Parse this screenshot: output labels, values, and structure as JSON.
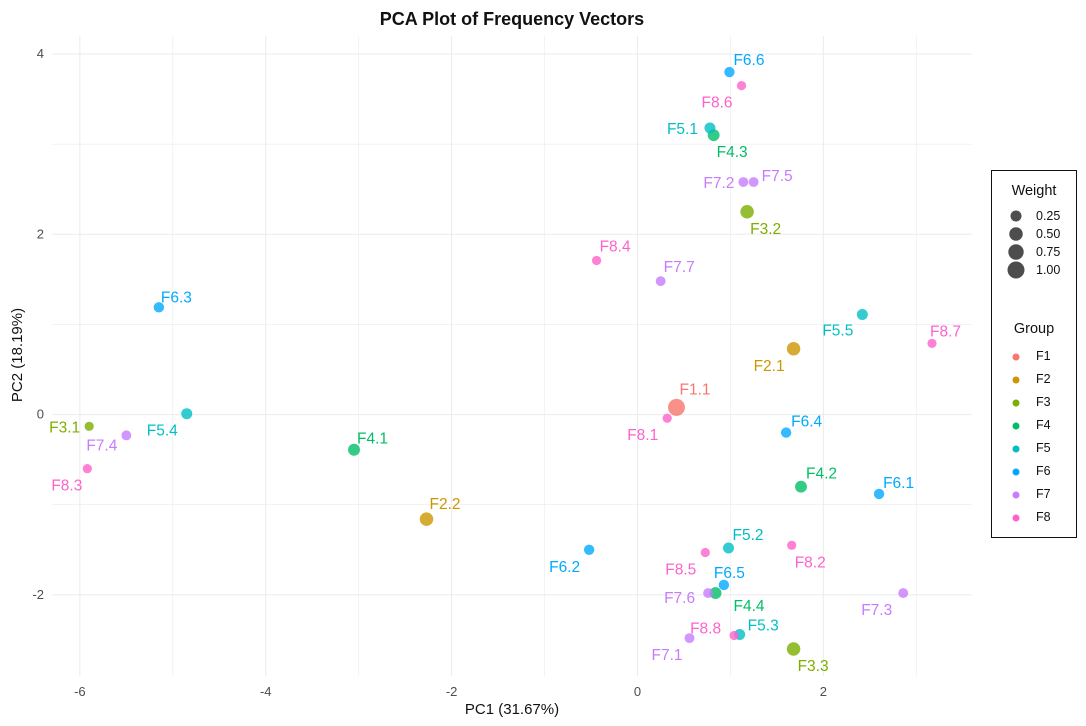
{
  "chart_data": {
    "type": "scatter",
    "title": "PCA Plot of Frequency Vectors",
    "xlabel": "PC1 (31.67%)",
    "ylabel": "PC2 (18.19%)",
    "xlim": [
      -6.3,
      3.6
    ],
    "ylim": [
      -2.9,
      4.2
    ],
    "xticks": [
      -6,
      -4,
      -2,
      0,
      2
    ],
    "yticks": [
      -2,
      0,
      2,
      4
    ],
    "grid": true,
    "legend_position": "right",
    "size_legend": {
      "title": "Weight",
      "entries": [
        "0.25",
        "0.50",
        "0.75",
        "1.00"
      ],
      "values": [
        0.25,
        0.5,
        0.75,
        1.0
      ]
    },
    "color_legend": {
      "title": "Group",
      "entries": [
        "F1",
        "F2",
        "F3",
        "F4",
        "F5",
        "F6",
        "F7",
        "F8"
      ]
    },
    "group_colors": {
      "F1": "#F8766D",
      "F2": "#CD9600",
      "F3": "#7CAE00",
      "F4": "#00BE67",
      "F5": "#00BFC4",
      "F6": "#00A9FF",
      "F7": "#C77CFF",
      "F8": "#FF61CC"
    },
    "points": [
      {
        "label": "F1.1",
        "group": "F1",
        "x": 0.42,
        "y": 0.08,
        "weight": 1.0
      },
      {
        "label": "F2.1",
        "group": "F2",
        "x": 1.68,
        "y": 0.73,
        "weight": 0.5
      },
      {
        "label": "F2.2",
        "group": "F2",
        "x": -2.27,
        "y": -1.16,
        "weight": 0.5
      },
      {
        "label": "F3.1",
        "group": "F3",
        "x": -5.9,
        "y": -0.13,
        "weight": 0.125
      },
      {
        "label": "F3.2",
        "group": "F3",
        "x": 1.18,
        "y": 2.25,
        "weight": 0.5
      },
      {
        "label": "F3.3",
        "group": "F3",
        "x": 1.68,
        "y": -2.6,
        "weight": 0.5
      },
      {
        "label": "F4.1",
        "group": "F4",
        "x": -3.05,
        "y": -0.39,
        "weight": 0.33
      },
      {
        "label": "F4.2",
        "group": "F4",
        "x": 1.76,
        "y": -0.8,
        "weight": 0.33
      },
      {
        "label": "F4.3",
        "group": "F4",
        "x": 0.82,
        "y": 3.1,
        "weight": 0.33
      },
      {
        "label": "F4.4",
        "group": "F4",
        "x": 0.84,
        "y": -1.98,
        "weight": 0.33
      },
      {
        "label": "F5.1",
        "group": "F5",
        "x": 0.78,
        "y": 3.18,
        "weight": 0.25
      },
      {
        "label": "F5.2",
        "group": "F5",
        "x": 0.98,
        "y": -1.48,
        "weight": 0.25
      },
      {
        "label": "F5.3",
        "group": "F5",
        "x": 1.1,
        "y": -2.44,
        "weight": 0.25
      },
      {
        "label": "F5.4",
        "group": "F5",
        "x": -4.85,
        "y": 0.01,
        "weight": 0.25
      },
      {
        "label": "F5.5",
        "group": "F5",
        "x": 2.42,
        "y": 1.11,
        "weight": 0.25
      },
      {
        "label": "F6.1",
        "group": "F6",
        "x": 2.6,
        "y": -0.88,
        "weight": 0.2
      },
      {
        "label": "F6.2",
        "group": "F6",
        "x": -0.52,
        "y": -1.5,
        "weight": 0.2
      },
      {
        "label": "F6.3",
        "group": "F6",
        "x": -5.15,
        "y": 1.19,
        "weight": 0.2
      },
      {
        "label": "F6.4",
        "group": "F6",
        "x": 1.6,
        "y": -0.2,
        "weight": 0.2
      },
      {
        "label": "F6.5",
        "group": "F6",
        "x": 0.93,
        "y": -1.89,
        "weight": 0.2
      },
      {
        "label": "F6.6",
        "group": "F6",
        "x": 0.99,
        "y": 3.8,
        "weight": 0.2
      },
      {
        "label": "F7.1",
        "group": "F7",
        "x": 0.56,
        "y": -2.48,
        "weight": 0.167
      },
      {
        "label": "F7.2",
        "group": "F7",
        "x": 1.14,
        "y": 2.58,
        "weight": 0.167
      },
      {
        "label": "F7.3",
        "group": "F7",
        "x": 2.86,
        "y": -1.98,
        "weight": 0.167
      },
      {
        "label": "F7.4",
        "group": "F7",
        "x": -5.5,
        "y": -0.23,
        "weight": 0.167
      },
      {
        "label": "F7.5",
        "group": "F7",
        "x": 1.25,
        "y": 2.58,
        "weight": 0.167
      },
      {
        "label": "F7.6",
        "group": "F7",
        "x": 0.76,
        "y": -1.98,
        "weight": 0.167
      },
      {
        "label": "F7.7",
        "group": "F7",
        "x": 0.25,
        "y": 1.48,
        "weight": 0.167
      },
      {
        "label": "F8.1",
        "group": "F8",
        "x": 0.32,
        "y": -0.04,
        "weight": 0.125
      },
      {
        "label": "F8.2",
        "group": "F8",
        "x": 1.66,
        "y": -1.45,
        "weight": 0.125
      },
      {
        "label": "F8.3",
        "group": "F8",
        "x": -5.92,
        "y": -0.6,
        "weight": 0.125
      },
      {
        "label": "F8.4",
        "group": "F8",
        "x": -0.44,
        "y": 1.71,
        "weight": 0.125
      },
      {
        "label": "F8.5",
        "group": "F8",
        "x": 0.73,
        "y": -1.53,
        "weight": 0.125
      },
      {
        "label": "F8.6",
        "group": "F8",
        "x": 1.12,
        "y": 3.65,
        "weight": 0.125
      },
      {
        "label": "F8.7",
        "group": "F8",
        "x": 3.17,
        "y": 0.79,
        "weight": 0.125
      },
      {
        "label": "F8.8",
        "group": "F8",
        "x": 1.04,
        "y": -2.45,
        "weight": 0.125
      }
    ]
  }
}
